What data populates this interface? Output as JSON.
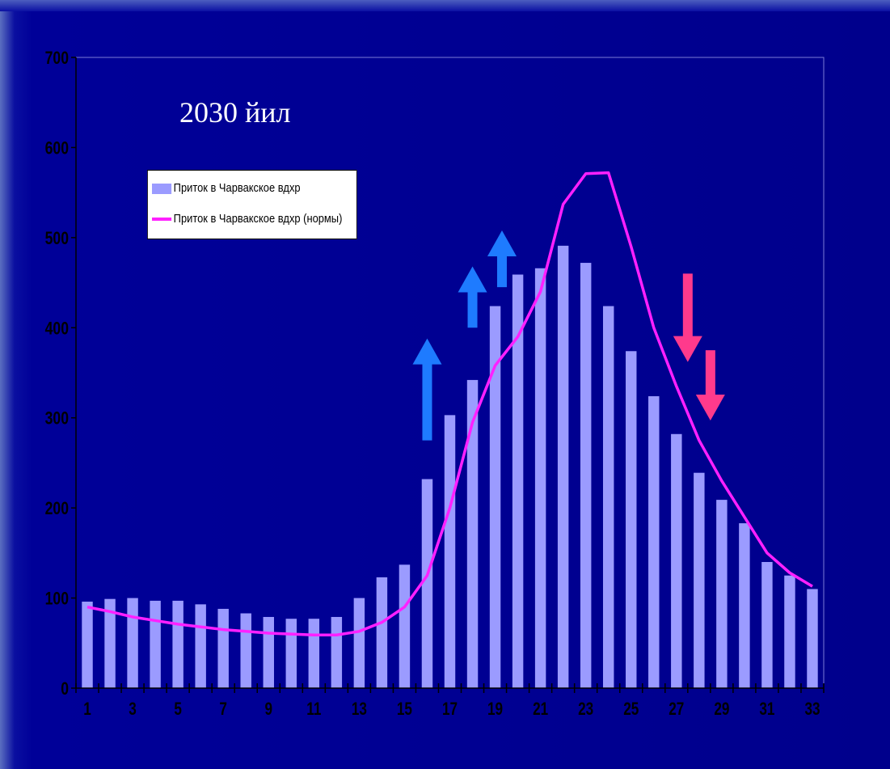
{
  "chart_data": {
    "type": "bar",
    "title": "2030 йил",
    "xlabel": "",
    "ylabel": "",
    "ylim": [
      0,
      700
    ],
    "yticks": [
      0,
      100,
      200,
      300,
      400,
      500,
      600,
      700
    ],
    "x": [
      1,
      2,
      3,
      4,
      5,
      6,
      7,
      8,
      9,
      10,
      11,
      12,
      13,
      14,
      15,
      16,
      17,
      18,
      19,
      20,
      21,
      22,
      23,
      24,
      25,
      26,
      27,
      28,
      29,
      30,
      31,
      32,
      33
    ],
    "xtick_labels": [
      "1",
      "3",
      "5",
      "7",
      "9",
      "11",
      "13",
      "15",
      "17",
      "19",
      "21",
      "23",
      "25",
      "27",
      "29",
      "31",
      "33"
    ],
    "series": [
      {
        "name": "Приток в Чарвакское вдхр",
        "kind": "bar",
        "color": "#9b9bff",
        "values": [
          96,
          99,
          100,
          97,
          97,
          93,
          88,
          83,
          79,
          77,
          77,
          79,
          100,
          123,
          137,
          232,
          303,
          342,
          424,
          459,
          466,
          491,
          472,
          424,
          374,
          324,
          282,
          239,
          209,
          183,
          140,
          125,
          110
        ]
      },
      {
        "name": "Приток в Чарвакское вдхр (нормы)",
        "kind": "line",
        "color": "#ff20ff",
        "values": [
          90,
          85,
          79,
          75,
          71,
          68,
          65,
          63,
          61,
          60,
          59,
          59,
          63,
          73,
          90,
          125,
          200,
          295,
          358,
          390,
          440,
          537,
          571,
          572,
          490,
          400,
          335,
          275,
          230,
          190,
          150,
          128,
          113
        ]
      }
    ],
    "legend_position": "top-left",
    "annotations": {
      "up_arrows_color": "#1e7bff",
      "down_arrows_color": "#ff3a8c",
      "up_arrows": [
        {
          "x": 16,
          "y_from": 275,
          "y_to": 388
        },
        {
          "x": 18,
          "y_from": 400,
          "y_to": 468
        },
        {
          "x": 19.3,
          "y_from": 445,
          "y_to": 508
        }
      ],
      "down_arrows": [
        {
          "x": 27.5,
          "y_from": 460,
          "y_to": 362
        },
        {
          "x": 28.5,
          "y_from": 375,
          "y_to": 297
        }
      ]
    }
  }
}
